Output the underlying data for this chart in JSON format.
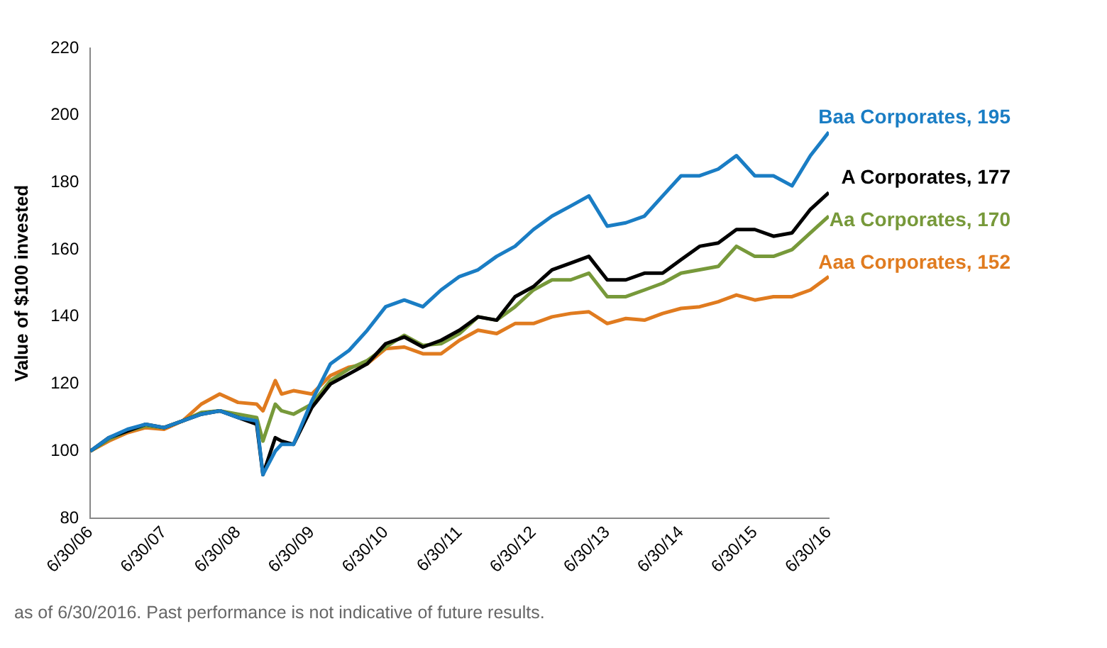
{
  "chart_data": {
    "type": "line",
    "ylabel": "Value of $100 invested",
    "x": [
      "2006-06-30",
      "2006-09-30",
      "2006-12-31",
      "2007-03-31",
      "2007-06-30",
      "2007-09-30",
      "2007-12-31",
      "2008-03-31",
      "2008-06-30",
      "2008-09-30",
      "2008-10-31",
      "2008-12-31",
      "2009-01-31",
      "2009-03-31",
      "2009-06-30",
      "2009-09-30",
      "2009-12-31",
      "2010-03-31",
      "2010-06-30",
      "2010-09-30",
      "2010-12-31",
      "2011-03-31",
      "2011-06-30",
      "2011-09-30",
      "2011-12-31",
      "2012-03-31",
      "2012-06-30",
      "2012-09-30",
      "2012-12-31",
      "2013-03-31",
      "2013-06-30",
      "2013-09-30",
      "2013-12-31",
      "2014-03-31",
      "2014-06-30",
      "2014-09-30",
      "2014-12-31",
      "2015-03-31",
      "2015-06-30",
      "2015-09-30",
      "2015-12-31",
      "2016-03-31",
      "2016-06-30"
    ],
    "series": [
      {
        "name": "Baa Corporates, 195",
        "color": "#1a7dc4",
        "values": [
          100,
          104,
          106.5,
          108,
          107,
          109,
          111,
          112,
          110,
          109,
          93,
          100,
          102,
          102,
          115,
          126,
          130,
          136,
          143,
          145,
          143,
          148,
          152,
          154,
          158,
          161,
          166,
          170,
          173,
          176,
          167,
          168,
          170,
          176,
          182,
          182,
          184,
          188,
          182,
          182,
          179,
          188,
          195
        ]
      },
      {
        "name": "A Corporates, 177",
        "color": "#000000",
        "values": [
          100,
          104,
          106,
          108,
          107,
          109,
          111,
          112,
          110,
          108,
          93,
          104,
          103,
          102,
          113,
          120,
          123,
          126,
          132,
          134,
          131,
          133,
          136,
          140,
          139,
          146,
          149,
          154,
          156,
          158,
          151,
          151,
          153,
          153,
          157,
          161,
          162,
          166,
          166,
          164,
          165,
          172,
          177
        ]
      },
      {
        "name": "Aa Corporates, 170",
        "color": "#77993a",
        "values": [
          100,
          103.5,
          106,
          107.5,
          107,
          109,
          111.5,
          112,
          111,
          110,
          103,
          114,
          112,
          111,
          114,
          121,
          124.5,
          127,
          131,
          134.5,
          131.5,
          132,
          135,
          140,
          139,
          143,
          148,
          151,
          151,
          153,
          146,
          146,
          148,
          150,
          153,
          154,
          155,
          161,
          158,
          158,
          160,
          165,
          170
        ]
      },
      {
        "name": "Aaa Corporates, 152",
        "color": "#e07b1f",
        "values": [
          100,
          103,
          105.5,
          107,
          106.5,
          109,
          114,
          117,
          114.5,
          114,
          112,
          121,
          117,
          118,
          117,
          122.5,
          125,
          126,
          130.5,
          131,
          129,
          129,
          133,
          136,
          135,
          138,
          138,
          140,
          141,
          141.5,
          138,
          139.5,
          139,
          141,
          142.5,
          143,
          144.5,
          146.5,
          145,
          146,
          146,
          148,
          152
        ]
      }
    ],
    "xlim": [
      "2006-06-30",
      "2016-06-30"
    ],
    "xticks": [
      {
        "value": "2006-06-30",
        "label": "6/30/06"
      },
      {
        "value": "2007-06-30",
        "label": "6/30/07"
      },
      {
        "value": "2008-06-30",
        "label": "6/30/08"
      },
      {
        "value": "2009-06-30",
        "label": "6/30/09"
      },
      {
        "value": "2010-06-30",
        "label": "6/30/10"
      },
      {
        "value": "2011-06-30",
        "label": "6/30/11"
      },
      {
        "value": "2012-06-30",
        "label": "6/30/12"
      },
      {
        "value": "2013-06-30",
        "label": "6/30/13"
      },
      {
        "value": "2014-06-30",
        "label": "6/30/14"
      },
      {
        "value": "2015-06-30",
        "label": "6/30/15"
      },
      {
        "value": "2016-06-30",
        "label": "6/30/16"
      }
    ],
    "ylim": [
      80,
      220
    ],
    "yticks": [
      80,
      100,
      120,
      140,
      160,
      180,
      200,
      220
    ],
    "grid": false,
    "legend": false,
    "marker": "none",
    "line_style": "solid",
    "annotations": [
      "as of 6/30/2016. Past performance is not indicative of future results."
    ]
  }
}
